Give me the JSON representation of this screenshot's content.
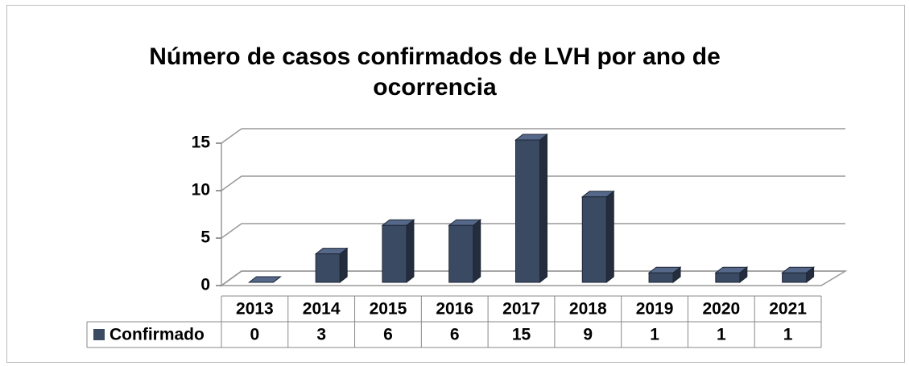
{
  "chart_data": {
    "type": "bar",
    "title": "Número de casos confirmados de LVH por ano de ocorrencia",
    "categories": [
      "2013",
      "2014",
      "2015",
      "2016",
      "2017",
      "2018",
      "2019",
      "2020",
      "2021"
    ],
    "series": [
      {
        "name": "Confirmado",
        "color": "#3b4a63",
        "values": [
          0,
          3,
          6,
          6,
          15,
          9,
          1,
          1,
          1
        ]
      }
    ],
    "ylim": [
      0,
      15
    ],
    "yticks": [
      0,
      5,
      10,
      15
    ],
    "grid": true,
    "data_table": true
  }
}
